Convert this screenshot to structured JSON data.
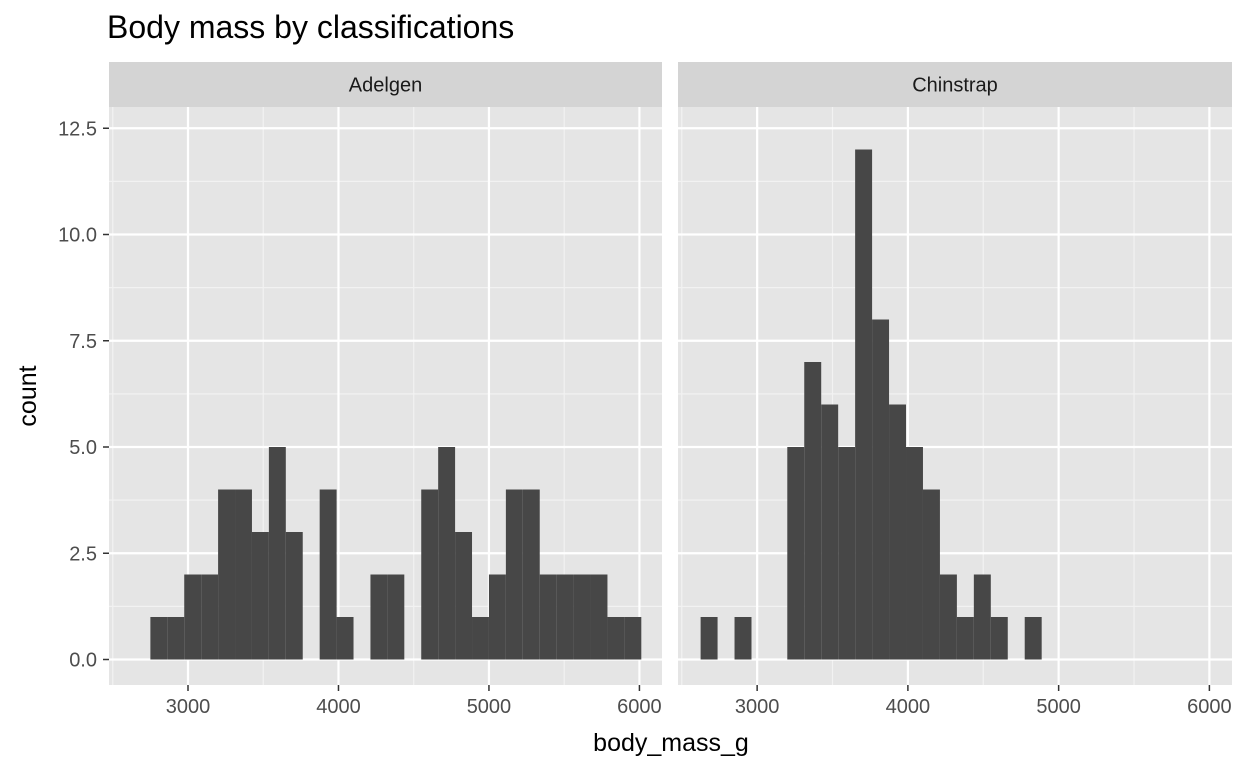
{
  "chart_data": {
    "type": "bar",
    "title": "Body mass by classifications",
    "xlabel": "body_mass_g",
    "ylabel": "count",
    "xlim": [
      2475,
      6150
    ],
    "ylim": [
      -0.6,
      13.0
    ],
    "x_ticks": [
      3000,
      4000,
      5000,
      6000
    ],
    "x_tick_labels": [
      "3000",
      "4000",
      "5000",
      "6000"
    ],
    "y_ticks": [
      0,
      2.5,
      5,
      7.5,
      10,
      12.5
    ],
    "y_tick_labels": [
      "0.0",
      "2.5",
      "5.0",
      "7.5",
      "10.0",
      "12.5"
    ],
    "bin_width": 112.5,
    "grid": true,
    "legend": "none",
    "colors": {
      "bar": "#474747",
      "panel_bg": "#e5e5e5",
      "strip_bg": "#d4d4d4",
      "grid_major": "#ffffff",
      "text": "#4d4d4d",
      "title": "#000000"
    },
    "facets": [
      {
        "label": "Adelgen",
        "bins": [
          {
            "start": 2750,
            "end": 2862.5,
            "count": 1
          },
          {
            "start": 2862.5,
            "end": 2975,
            "count": 1
          },
          {
            "start": 2975,
            "end": 3087.5,
            "count": 2
          },
          {
            "start": 3087.5,
            "end": 3200,
            "count": 2
          },
          {
            "start": 3200,
            "end": 3312.5,
            "count": 4
          },
          {
            "start": 3312.5,
            "end": 3425,
            "count": 4
          },
          {
            "start": 3425,
            "end": 3537.5,
            "count": 3
          },
          {
            "start": 3537.5,
            "end": 3650,
            "count": 5
          },
          {
            "start": 3650,
            "end": 3762.5,
            "count": 3
          },
          {
            "start": 3762.5,
            "end": 3875,
            "count": 0
          },
          {
            "start": 3875,
            "end": 3987.5,
            "count": 4
          },
          {
            "start": 3987.5,
            "end": 4100,
            "count": 1
          },
          {
            "start": 4100,
            "end": 4212.5,
            "count": 0
          },
          {
            "start": 4212.5,
            "end": 4325,
            "count": 2
          },
          {
            "start": 4325,
            "end": 4437.5,
            "count": 2
          },
          {
            "start": 4437.5,
            "end": 4550,
            "count": 0
          },
          {
            "start": 4550,
            "end": 4662.5,
            "count": 4
          },
          {
            "start": 4662.5,
            "end": 4775,
            "count": 5
          },
          {
            "start": 4775,
            "end": 4887.5,
            "count": 3
          },
          {
            "start": 4887.5,
            "end": 5000,
            "count": 1
          },
          {
            "start": 5000,
            "end": 5112.5,
            "count": 2
          },
          {
            "start": 5112.5,
            "end": 5225,
            "count": 4
          },
          {
            "start": 5225,
            "end": 5337.5,
            "count": 4
          },
          {
            "start": 5337.5,
            "end": 5450,
            "count": 2
          },
          {
            "start": 5450,
            "end": 5562.5,
            "count": 2
          },
          {
            "start": 5562.5,
            "end": 5675,
            "count": 2
          },
          {
            "start": 5675,
            "end": 5787.5,
            "count": 2
          },
          {
            "start": 5787.5,
            "end": 5900,
            "count": 1
          },
          {
            "start": 5900,
            "end": 6012.5,
            "count": 1
          }
        ]
      },
      {
        "label": "Chinstrap",
        "bins": [
          {
            "start": 2625,
            "end": 2737.5,
            "count": 1
          },
          {
            "start": 2850,
            "end": 2962.5,
            "count": 1
          },
          {
            "start": 3200,
            "end": 3312.5,
            "count": 5
          },
          {
            "start": 3312.5,
            "end": 3425,
            "count": 7
          },
          {
            "start": 3425,
            "end": 3537.5,
            "count": 6
          },
          {
            "start": 3537.5,
            "end": 3650,
            "count": 5
          },
          {
            "start": 3650,
            "end": 3762.5,
            "count": 12
          },
          {
            "start": 3762.5,
            "end": 3875,
            "count": 8
          },
          {
            "start": 3875,
            "end": 3987.5,
            "count": 6
          },
          {
            "start": 3987.5,
            "end": 4100,
            "count": 5
          },
          {
            "start": 4100,
            "end": 4212.5,
            "count": 4
          },
          {
            "start": 4212.5,
            "end": 4325,
            "count": 2
          },
          {
            "start": 4325,
            "end": 4437.5,
            "count": 1
          },
          {
            "start": 4437.5,
            "end": 4550,
            "count": 2
          },
          {
            "start": 4550,
            "end": 4662.5,
            "count": 1
          },
          {
            "start": 4775,
            "end": 4887.5,
            "count": 1
          }
        ]
      }
    ]
  }
}
